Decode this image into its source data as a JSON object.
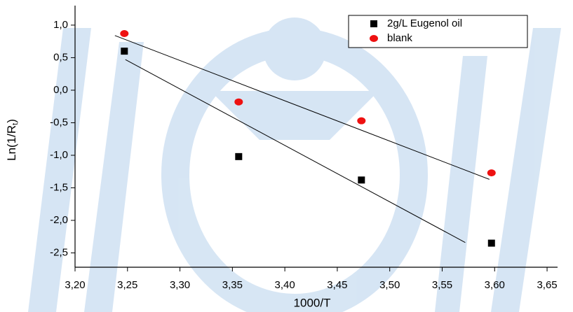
{
  "chart_data": {
    "type": "scatter",
    "x_label": "1000/T",
    "y_label": {
      "main": "Ln(1/R",
      "sub": "t",
      "end": ")"
    },
    "series": [
      {
        "name": "2g/L Eugenol oil",
        "color": "#000000",
        "marker": "square",
        "x": [
          3.247,
          3.356,
          3.473,
          3.597
        ],
        "values": [
          0.6,
          -1.02,
          -1.38,
          -2.35
        ]
      },
      {
        "name": "blank",
        "color": "#ee1111",
        "marker": "circle",
        "x": [
          3.247,
          3.356,
          3.473,
          3.597
        ],
        "values": [
          0.87,
          -0.18,
          -0.47,
          -1.27
        ]
      }
    ],
    "fits": [
      {
        "x": [
          3.248,
          3.572
        ],
        "values": [
          0.47,
          -2.34
        ]
      },
      {
        "x": [
          3.238,
          3.595
        ],
        "values": [
          0.84,
          -1.37
        ]
      }
    ],
    "xlim": [
      3.2,
      3.66
    ],
    "ylim": [
      -2.72,
      1.3
    ],
    "xticks": [
      {
        "value": 3.2,
        "label": "3,20"
      },
      {
        "value": 3.25,
        "label": "3,25"
      },
      {
        "value": 3.3,
        "label": "3,30"
      },
      {
        "value": 3.35,
        "label": "3,35"
      },
      {
        "value": 3.4,
        "label": "3,40"
      },
      {
        "value": 3.45,
        "label": "3,45"
      },
      {
        "value": 3.5,
        "label": "3,50"
      },
      {
        "value": 3.55,
        "label": "3,55"
      },
      {
        "value": 3.6,
        "label": "3,60"
      },
      {
        "value": 3.65,
        "label": "3,65"
      }
    ],
    "yticks": [
      {
        "value": 1,
        "label": "1,0"
      },
      {
        "value": 0.5,
        "label": "0,5"
      },
      {
        "value": 0,
        "label": "0,0"
      },
      {
        "value": -0.5,
        "label": "-0,5"
      },
      {
        "value": -1,
        "label": "-1,0"
      },
      {
        "value": -1.5,
        "label": "-1,5"
      },
      {
        "value": -2,
        "label": "-2,0"
      },
      {
        "value": -2.5,
        "label": "-2,5"
      }
    ],
    "legend": "upper right"
  }
}
